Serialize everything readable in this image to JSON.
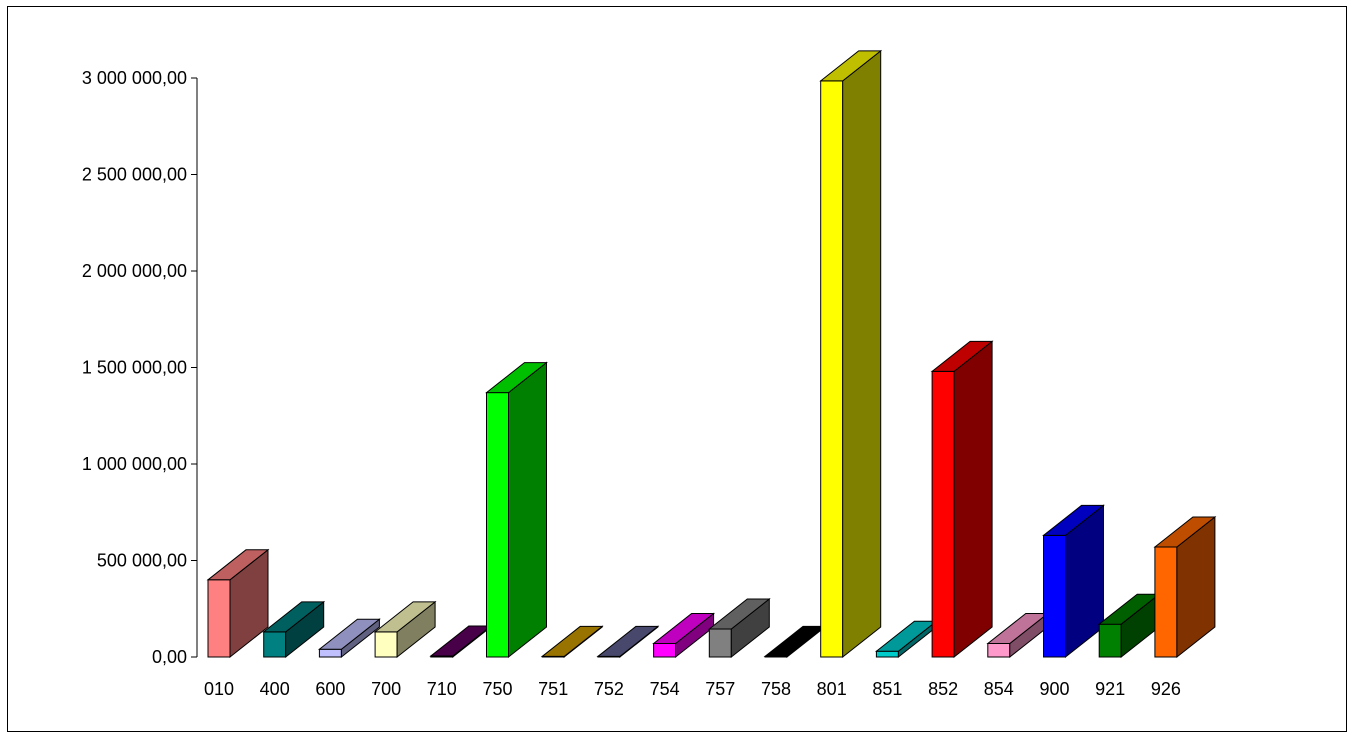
{
  "chart_data": {
    "type": "bar",
    "title": "",
    "xlabel": "",
    "ylabel": "",
    "ylim": [
      0,
      3000000
    ],
    "grid": false,
    "legend": "none",
    "y_ticks": [
      {
        "value": 0,
        "label": "0,00"
      },
      {
        "value": 500000,
        "label": "500 000,00"
      },
      {
        "value": 1000000,
        "label": "1 000 000,00"
      },
      {
        "value": 1500000,
        "label": "1 500 000,00"
      },
      {
        "value": 2000000,
        "label": "2 000 000,00"
      },
      {
        "value": 2500000,
        "label": "2 500 000,00"
      },
      {
        "value": 3000000,
        "label": "3 000 000,00"
      }
    ],
    "categories": [
      "010",
      "400",
      "600",
      "700",
      "710",
      "750",
      "751",
      "752",
      "754",
      "757",
      "758",
      "801",
      "851",
      "852",
      "854",
      "900",
      "921",
      "926"
    ],
    "values": [
      400000,
      130000,
      40000,
      130000,
      5000,
      1370000,
      3000,
      3000,
      70000,
      145000,
      3000,
      2985000,
      30000,
      1480000,
      70000,
      630000,
      170000,
      570000
    ],
    "colors": [
      "#FF8080",
      "#008080",
      "#C0C0FF",
      "#FFFFC0",
      "#600060",
      "#00FF00",
      "#CC9900",
      "#606090",
      "#FF00FF",
      "#808080",
      "#000000",
      "#FFFF00",
      "#00CCCC",
      "#FF0000",
      "#FF99CC",
      "#0000FF",
      "#008000",
      "#FF6600"
    ]
  }
}
